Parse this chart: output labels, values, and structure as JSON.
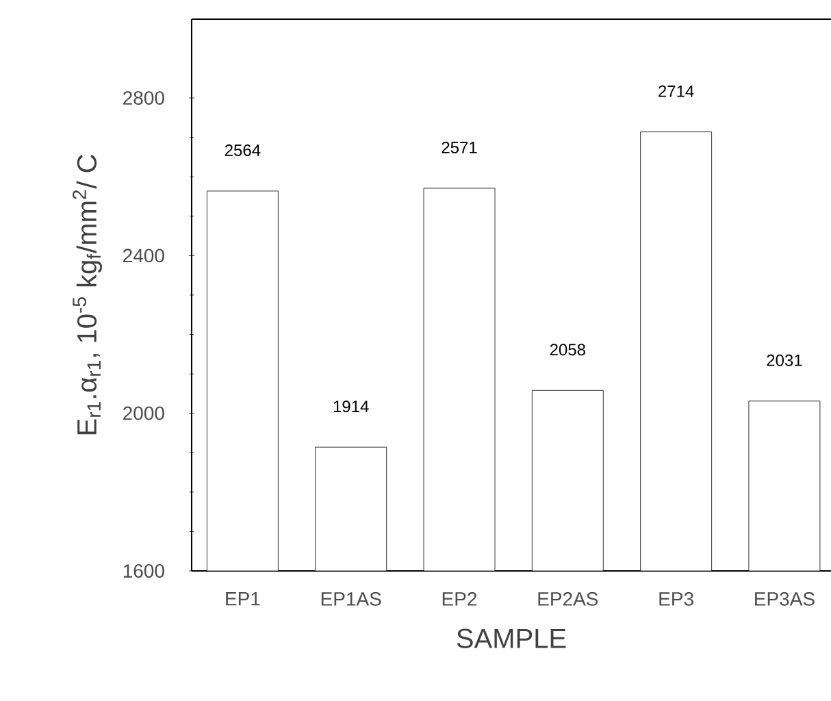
{
  "chart_data": {
    "type": "bar",
    "xlabel": "SAMPLE",
    "ylabel": "E$_{r1}$.α$_{r1}$, 10$^{-5}$ kg$_{f}$/mm$^{2}$/ C",
    "categories": [
      "EP1",
      "EP1AS",
      "EP2",
      "EP2AS",
      "EP3",
      "EP3AS"
    ],
    "values": [
      2564,
      1914,
      2571,
      2058,
      2714,
      2031
    ],
    "color": "#000000",
    "ylim": [
      1600,
      3000
    ],
    "yticks": [
      1600,
      2000,
      2400,
      2800
    ],
    "data_labels": true
  }
}
